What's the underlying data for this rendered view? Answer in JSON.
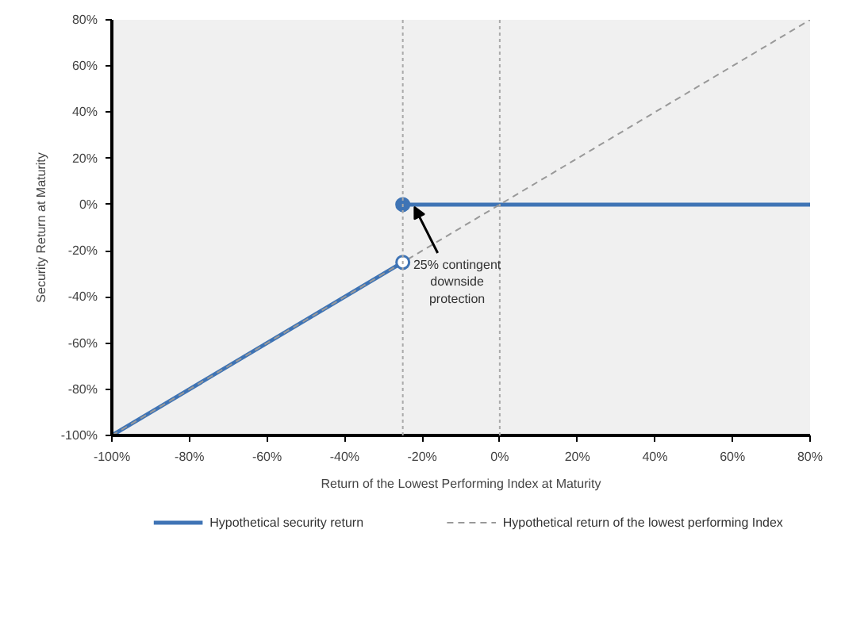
{
  "chart_data": {
    "type": "line",
    "xlabel": "Return of the Lowest Performing Index at Maturity",
    "ylabel": "Security Return at Maturity",
    "xlim": [
      -100,
      80
    ],
    "ylim": [
      -100,
      80
    ],
    "xticks": [
      {
        "value": -100,
        "label": "-100%"
      },
      {
        "value": -80,
        "label": "-80%"
      },
      {
        "value": -60,
        "label": "-60%"
      },
      {
        "value": -40,
        "label": "-40%"
      },
      {
        "value": -20,
        "label": "-20%"
      },
      {
        "value": 0,
        "label": "0%"
      },
      {
        "value": 20,
        "label": "20%"
      },
      {
        "value": 40,
        "label": "40%"
      },
      {
        "value": 60,
        "label": "60%"
      },
      {
        "value": 80,
        "label": "80%"
      }
    ],
    "yticks": [
      {
        "value": -100,
        "label": "-100%"
      },
      {
        "value": -80,
        "label": "-80%"
      },
      {
        "value": -60,
        "label": "-60%"
      },
      {
        "value": -40,
        "label": "-40%"
      },
      {
        "value": -20,
        "label": "-20%"
      },
      {
        "value": 0,
        "label": "0%"
      },
      {
        "value": 20,
        "label": "20%"
      },
      {
        "value": 40,
        "label": "40%"
      },
      {
        "value": 60,
        "label": "60%"
      },
      {
        "value": 80,
        "label": "80%"
      }
    ],
    "series": [
      {
        "name": "Hypothetical security return",
        "type": "line",
        "color": "#3f74b5",
        "x": [
          -100,
          -25
        ],
        "values": [
          -100,
          -25
        ]
      },
      {
        "type": "line",
        "color": "#3f74b5",
        "x": [
          -25,
          80
        ],
        "values": [
          0,
          0
        ]
      },
      {
        "name": "Hypothetical return of the lowest performing Index",
        "type": "line",
        "line_style": "dashed",
        "color": "#999999",
        "x": [
          -100,
          80
        ],
        "values": [
          -100,
          80
        ]
      },
      {
        "type": "scatter",
        "marker": "circle",
        "color": "#3f74b5",
        "colors": [
          "#ffffff",
          "#3f74b5"
        ],
        "x": [
          -25,
          -25
        ],
        "values": [
          -25,
          0
        ]
      }
    ],
    "ref_lines": [
      {
        "axis": "x",
        "value": -25,
        "color": "#aaaaaa",
        "line_style": "dotted"
      },
      {
        "axis": "x",
        "value": 0,
        "color": "#aaaaaa",
        "line_style": "dotted"
      }
    ],
    "annotations": [
      {
        "text": "25% contingent\ndownside\nprotection",
        "x": -22,
        "y": 0
      }
    ],
    "legend": "bottom"
  }
}
